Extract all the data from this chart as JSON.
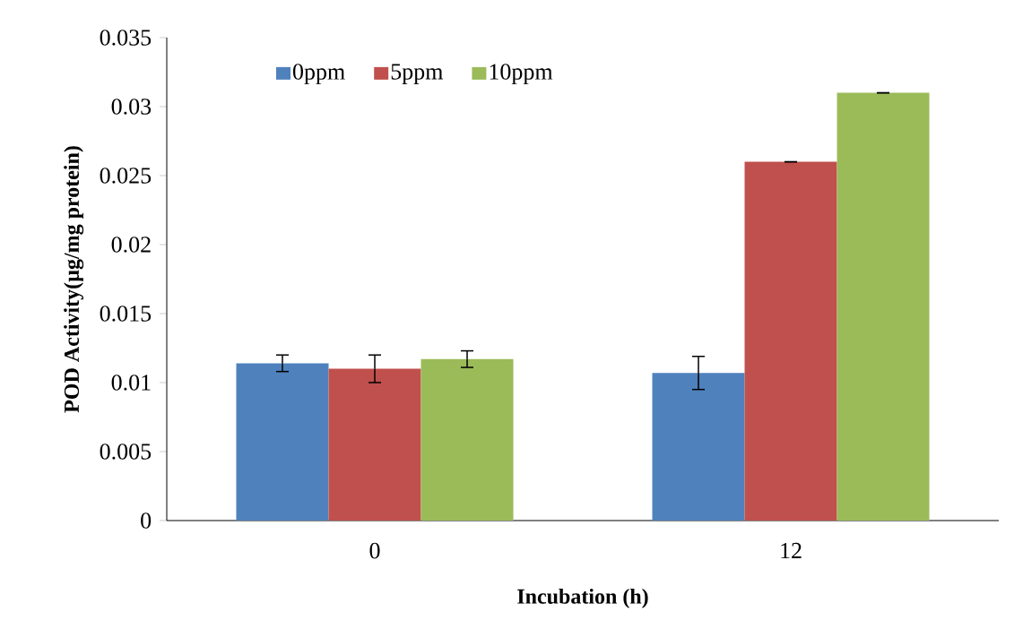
{
  "chart_data": {
    "type": "bar",
    "xlabel": "Incubation (h)",
    "ylabel": "POD Activity(µg/mg protein)",
    "categories": [
      "0",
      "12"
    ],
    "series": [
      {
        "name": "0ppm",
        "color": "#4f81bd",
        "values": [
          0.0114,
          0.0107
        ],
        "errors": [
          0.0006,
          0.0012
        ]
      },
      {
        "name": "5ppm",
        "color": "#c0504d",
        "values": [
          0.011,
          0.026
        ],
        "errors": [
          0.001,
          0
        ]
      },
      {
        "name": "10ppm",
        "color": "#9bbb59",
        "values": [
          0.0117,
          0.031
        ],
        "errors": [
          0.0006,
          0
        ]
      }
    ],
    "ylim": [
      0,
      0.035
    ],
    "yticks": [
      0,
      0.005,
      0.01,
      0.015,
      0.02,
      0.025,
      0.03,
      0.035
    ],
    "grid": false,
    "legend": "top"
  }
}
